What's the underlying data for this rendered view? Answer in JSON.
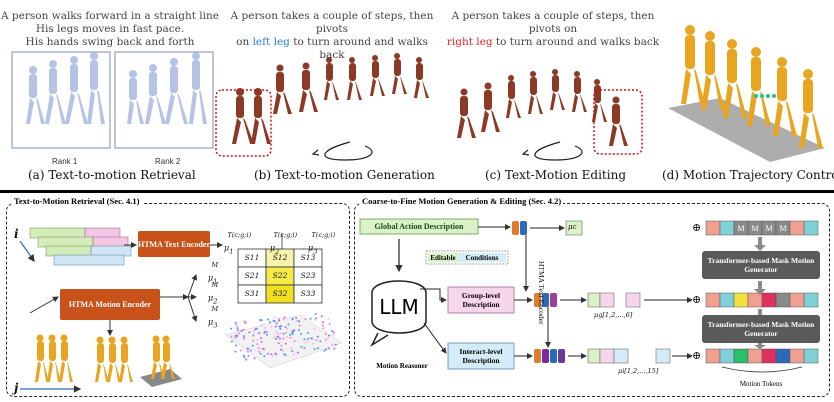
{
  "panels": {
    "a": {
      "caption_lines": [
        "A person walks forward in a straight line",
        "His legs moves in fast pace.",
        "His hands swing back and forth"
      ],
      "rank1": "Rank 1",
      "rank2": "Rank 2",
      "label": "(a) Text-to-motion Retrieval"
    },
    "b": {
      "caption_line1": "A person takes a couple of steps, then pivots",
      "caption_pre": "on ",
      "caption_highlight": "left leg",
      "caption_post": " to turn around and walks back",
      "label": "(b) Text-to-motion Generation"
    },
    "c": {
      "caption_line1": "A person takes a couple of steps, then pivots on",
      "caption_highlight": "right leg",
      "caption_post": " to turn around and walks back",
      "label": "(c) Text-Motion Editing"
    },
    "d": {
      "label": "(d) Motion Trajectory Control"
    }
  },
  "retrieval": {
    "title": "Text-to-Motion Retrieval (Sec. 4.1)",
    "text_encoder": "HTMA Text Encoder",
    "motion_encoder": "HTMA Motion Encoder",
    "mu_t1": "μ",
    "i_label": "i",
    "j_label": "j",
    "t_sup1": "T(c;g;i)",
    "t_sup2": "T(c;g;i)",
    "t_sup3": "T(c;g;i)",
    "m_sup": "M",
    "sub1": "1",
    "sub2": "2",
    "sub3": "3",
    "grid": [
      [
        "S11",
        "S12",
        "S13"
      ],
      [
        "S21",
        "S22",
        "S23"
      ],
      [
        "S31",
        "S32",
        "S33"
      ]
    ]
  },
  "generation": {
    "title": "Coarse-to-Fine Motion Generation & Editing (Sec. 4.2)",
    "global": "Global Action Description",
    "editable": "Editable",
    "conditions": "Conditions",
    "group": "Group-level Description",
    "interact": "Interact-level Description",
    "llm": "LLM",
    "reasoner": "Motion Reasoner",
    "text_encoder_vertical": "HTMA Text Encoder",
    "mu_c": "μc",
    "mu_g": "μg[1,2,...,6]",
    "mu_i": "μi[1,2,...,15]",
    "generator1": "Transformer-based Mask Motion Generator",
    "generator2": "Transformer-based Mask Motion Generator",
    "mask_token": "M",
    "motion_tokens": "Motion Tokens",
    "plus": "⊕"
  },
  "colors": {
    "encoder": "#c9521a",
    "generator": "#5a5a5a",
    "global_box": "#d9f2c8",
    "group_box": "#f6d6ec",
    "interact_box": "#d4ecf8",
    "highlight_blue": "#2a7bd8",
    "highlight_red": "#e02020"
  }
}
